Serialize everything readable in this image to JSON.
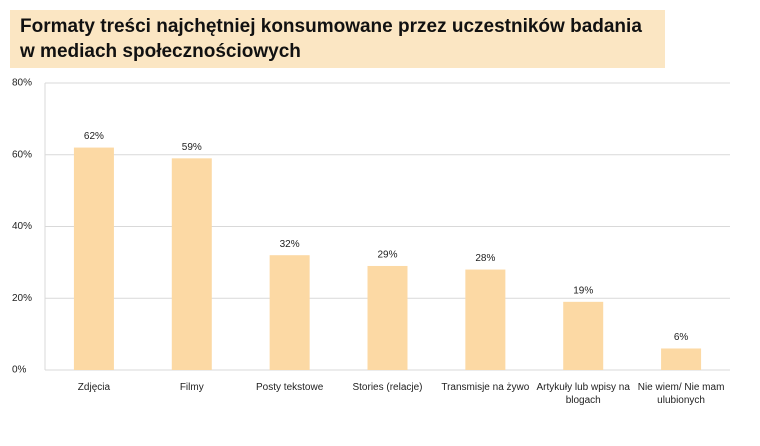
{
  "chart_data": {
    "type": "bar",
    "title": "Formaty treści najchętniej konsumowane przez uczestników badania w mediach społecznościowych",
    "categories": [
      "Zdjęcia",
      "Filmy",
      "Posty tekstowe",
      "Stories (relacje)",
      "Transmisje na żywo",
      "Artykuły lub wpisy na blogach",
      "Nie wiem/ Nie mam ulubionych"
    ],
    "values": [
      62,
      59,
      32,
      29,
      28,
      19,
      6
    ],
    "value_labels": [
      "62%",
      "59%",
      "32%",
      "29%",
      "28%",
      "19%",
      "6%"
    ],
    "color": "#fcd9a4",
    "ylim": [
      0,
      80
    ],
    "yticks": [
      {
        "value": 0,
        "label": "0%"
      },
      {
        "value": 20,
        "label": "20%"
      },
      {
        "value": 40,
        "label": "40%"
      },
      {
        "value": 60,
        "label": "60%"
      },
      {
        "value": 80,
        "label": "80%"
      }
    ],
    "grid": true
  }
}
